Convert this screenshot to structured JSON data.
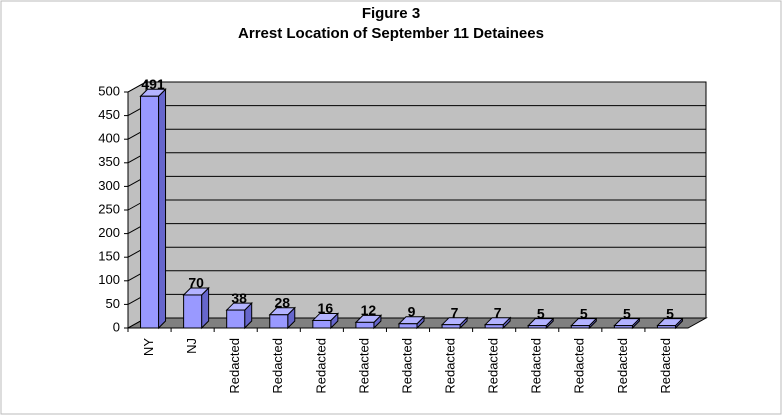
{
  "chart_data": {
    "type": "bar3d",
    "title": "Figure 3",
    "subtitle": "Arrest Location of September 11 Detainees",
    "categories": [
      "NY",
      "NJ",
      "Redacted",
      "Redacted",
      "Redacted",
      "Redacted",
      "Redacted",
      "Redacted",
      "Redacted",
      "Redacted",
      "Redacted",
      "Redacted",
      "Redacted"
    ],
    "values": [
      491,
      70,
      38,
      28,
      16,
      12,
      9,
      7,
      7,
      5,
      5,
      5,
      5
    ],
    "color": "#9999ff",
    "ylim": [
      0,
      500
    ],
    "yticks": [
      0,
      50,
      100,
      150,
      200,
      250,
      300,
      350,
      400,
      450,
      500
    ],
    "grid": true
  }
}
